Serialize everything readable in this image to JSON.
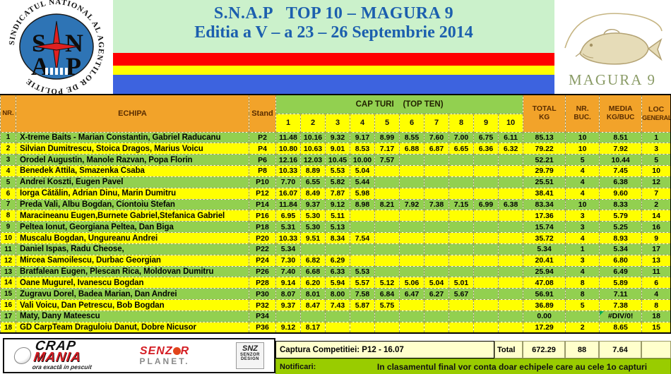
{
  "banner": {
    "snap_logo": {
      "ring_text": "SINDICATUL NATIONAL AL AGENTILOR DE POLITIE",
      "letters": [
        "S",
        "N",
        "A",
        "P"
      ]
    },
    "title_line1": "S.N.A.P   TOP 10 – MAGURA 9",
    "title_line2": "Editia a V – a 23 – 26 Septembrie 2014",
    "magura_label": "MAGURA 9",
    "flag_colors": [
      "#fe0000",
      "#ffff00",
      "#3d63df"
    ]
  },
  "table": {
    "col_nr": "NR.",
    "col_echipa": "ECHIPA",
    "col_stand": "Stand",
    "capturi_header": "CAP TURI    (TOP TEN)",
    "capture_cols": [
      "1",
      "2",
      "3",
      "4",
      "5",
      "6",
      "7",
      "8",
      "9",
      "10"
    ],
    "col_total_1": "TOTAL",
    "col_total_2": "KG",
    "col_buc_1": "NR.",
    "col_buc_2": "BUC.",
    "col_media_1": "MEDIA",
    "col_media_2": "KG/BUC",
    "col_loc_1": "LOC",
    "col_loc_2": "GENERAL",
    "rows": [
      {
        "nr": "1",
        "team": "X-treme Baits - Marian Constantin, Gabriel Raducanu",
        "stand": "P2",
        "captures": [
          "11.48",
          "10.16",
          "9.32",
          "9.17",
          "8.99",
          "8.55",
          "7.60",
          "7.00",
          "6.75",
          "6.11"
        ],
        "total": "85.13",
        "buc": "10",
        "media": "8.51",
        "loc": "1"
      },
      {
        "nr": "2",
        "team": "Silvian Dumitrescu, Stoica Dragos, Marius Voicu",
        "stand": "P4",
        "captures": [
          "10.80",
          "10.63",
          "9.01",
          "8.53",
          "7.17",
          "6.88",
          "6.87",
          "6.65",
          "6.36",
          "6.32"
        ],
        "total": "79.22",
        "buc": "10",
        "media": "7.92",
        "loc": "3"
      },
      {
        "nr": "3",
        "team": "Orodel Augustin, Manole Razvan, Popa Florin",
        "stand": "P6",
        "captures": [
          "12.16",
          "12.03",
          "10.45",
          "10.00",
          "7.57",
          "",
          "",
          "",
          "",
          ""
        ],
        "total": "52.21",
        "buc": "5",
        "media": "10.44",
        "loc": "5"
      },
      {
        "nr": "4",
        "team": "Benedek Attila, Smazenka Csaba",
        "stand": "P8",
        "captures": [
          "10.33",
          "8.89",
          "5.53",
          "5.04",
          "",
          "",
          "",
          "",
          "",
          ""
        ],
        "total": "29.79",
        "buc": "4",
        "media": "7.45",
        "loc": "10"
      },
      {
        "nr": "5",
        "team": "Andrei Koszti, Eugen Pavel",
        "stand": "P10",
        "captures": [
          "7.70",
          "6.55",
          "5.82",
          "5.44",
          "",
          "",
          "",
          "",
          "",
          ""
        ],
        "total": "25.51",
        "buc": "4",
        "media": "6.38",
        "loc": "12"
      },
      {
        "nr": "6",
        "team": "Iorga Cătălin, Adrian Dinu, Marin Dumitru",
        "stand": "P12",
        "captures": [
          "16.07",
          "8.49",
          "7.87",
          "5.98",
          "",
          "",
          "",
          "",
          "",
          ""
        ],
        "total": "38.41",
        "buc": "4",
        "media": "9.60",
        "loc": "7"
      },
      {
        "nr": "7",
        "team": "Preda Vali, Albu Bogdan, Ciontoiu Stefan",
        "stand": "P14",
        "captures": [
          "11.84",
          "9.37",
          "9.12",
          "8.98",
          "8.21",
          "7.92",
          "7.38",
          "7.15",
          "6.99",
          "6.38"
        ],
        "total": "83.34",
        "buc": "10",
        "media": "8.33",
        "loc": "2"
      },
      {
        "nr": "8",
        "team": "Maracineanu Eugen,Burnete Gabriel,Stefanica Gabriel",
        "stand": "P16",
        "captures": [
          "6.95",
          "5.30",
          "5.11",
          "",
          "",
          "",
          "",
          "",
          "",
          ""
        ],
        "total": "17.36",
        "buc": "3",
        "media": "5.79",
        "loc": "14"
      },
      {
        "nr": "9",
        "team": "Peltea Ionut, Georgiana Peltea, Dan Biga",
        "stand": "P18",
        "captures": [
          "5.31",
          "5.30",
          "5.13",
          "",
          "",
          "",
          "",
          "",
          "",
          ""
        ],
        "total": "15.74",
        "buc": "3",
        "media": "5.25",
        "loc": "16"
      },
      {
        "nr": "10",
        "team": "Muscalu Bogdan, Ungureanu Andrei",
        "stand": "P20",
        "captures": [
          "10.33",
          "9.51",
          "8.34",
          "7.54",
          "",
          "",
          "",
          "",
          "",
          ""
        ],
        "total": "35.72",
        "buc": "4",
        "media": "8.93",
        "loc": "9"
      },
      {
        "nr": "11",
        "team": "Daniel Ispas, Radu Cheose,",
        "stand": "P22",
        "captures": [
          "5.34",
          "",
          "",
          "",
          "",
          "",
          "",
          "",
          "",
          ""
        ],
        "total": "5.34",
        "buc": "1",
        "media": "5.34",
        "loc": "17"
      },
      {
        "nr": "12",
        "team": "Mircea Samoilescu, Durbac Georgian",
        "stand": "P24",
        "captures": [
          "7.30",
          "6.82",
          "6.29",
          "",
          "",
          "",
          "",
          "",
          "",
          ""
        ],
        "total": "20.41",
        "buc": "3",
        "media": "6.80",
        "loc": "13"
      },
      {
        "nr": "13",
        "team": "Bratfalean Eugen, Plescan Rica, Moldovan Dumitru",
        "stand": "P26",
        "captures": [
          "7.40",
          "6.68",
          "6.33",
          "5.53",
          "",
          "",
          "",
          "",
          "",
          ""
        ],
        "total": "25.94",
        "buc": "4",
        "media": "6.49",
        "loc": "11"
      },
      {
        "nr": "14",
        "team": "Oane Mugurel, Ivanescu Bogdan",
        "stand": "P28",
        "captures": [
          "9.14",
          "6.20",
          "5.94",
          "5.57",
          "5.12",
          "5.06",
          "5.04",
          "5.01",
          "",
          ""
        ],
        "total": "47.08",
        "buc": "8",
        "media": "5.89",
        "loc": "6"
      },
      {
        "nr": "15",
        "team": "Zugravu Dorel, Badea Marian, Dan Andrei",
        "stand": "P30",
        "captures": [
          "8.07",
          "8.01",
          "8.00",
          "7.58",
          "6.84",
          "6.47",
          "6.27",
          "5.67",
          "",
          ""
        ],
        "total": "56.91",
        "buc": "8",
        "media": "7.11",
        "loc": "4"
      },
      {
        "nr": "16",
        "team": "Vali Voicu, Dan Petrescu, Bob Bogdan",
        "stand": "P32",
        "captures": [
          "9.37",
          "8.47",
          "7.43",
          "5.87",
          "5.75",
          "",
          "",
          "",
          "",
          ""
        ],
        "total": "36.89",
        "buc": "5",
        "media": "7.38",
        "loc": "8"
      },
      {
        "nr": "17",
        "team": "Maty, Dany Mateescu",
        "stand": "P34",
        "captures": [
          "",
          "",
          "",
          "",
          "",
          "",
          "",
          "",
          "",
          ""
        ],
        "total": "0.00",
        "buc": "",
        "media": "#DIV/0!",
        "loc": "18"
      },
      {
        "nr": "18",
        "team": "GD CarpTeam  Draguloiu Danut, Dobre Nicusor",
        "stand": "P36",
        "captures": [
          "9.12",
          "8.17",
          "",
          "",
          "",
          "",
          "",
          "",
          "",
          ""
        ],
        "total": "17.29",
        "buc": "2",
        "media": "8.65",
        "loc": "15"
      }
    ]
  },
  "footer": {
    "sponsors": {
      "crapmania_line1": "CRAP",
      "crapmania_line2": "MANIA",
      "crapmania_tagline": "ora exactă in pescuit",
      "senzor_line1_a": "SENZ",
      "senzor_line1_b": "R",
      "senzor_line2": "PLANET.",
      "snz_line1": "SNZ",
      "snz_line2": "SENZOR",
      "snz_line3": "DESIGN"
    },
    "captura_label": "Captura Competitiei: P12 - 16.07",
    "total_label": "Total",
    "total_kg": "672.29",
    "total_buc": "88",
    "total_media": "7.64",
    "notificari_label": "Notificari:",
    "notificari_text": "In clasamentul final vor conta doar echipele care au cele 1o capturi"
  },
  "colors": {
    "header_orange": "#f2a32a",
    "row_green": "#92d050",
    "row_yellow": "#ffff00",
    "title_blue": "#1c5fae",
    "title_bg": "#cbf1cb",
    "notif_green": "#99cc00",
    "light_yellow": "#ffffcc",
    "error_marker_green": "#00b050"
  }
}
